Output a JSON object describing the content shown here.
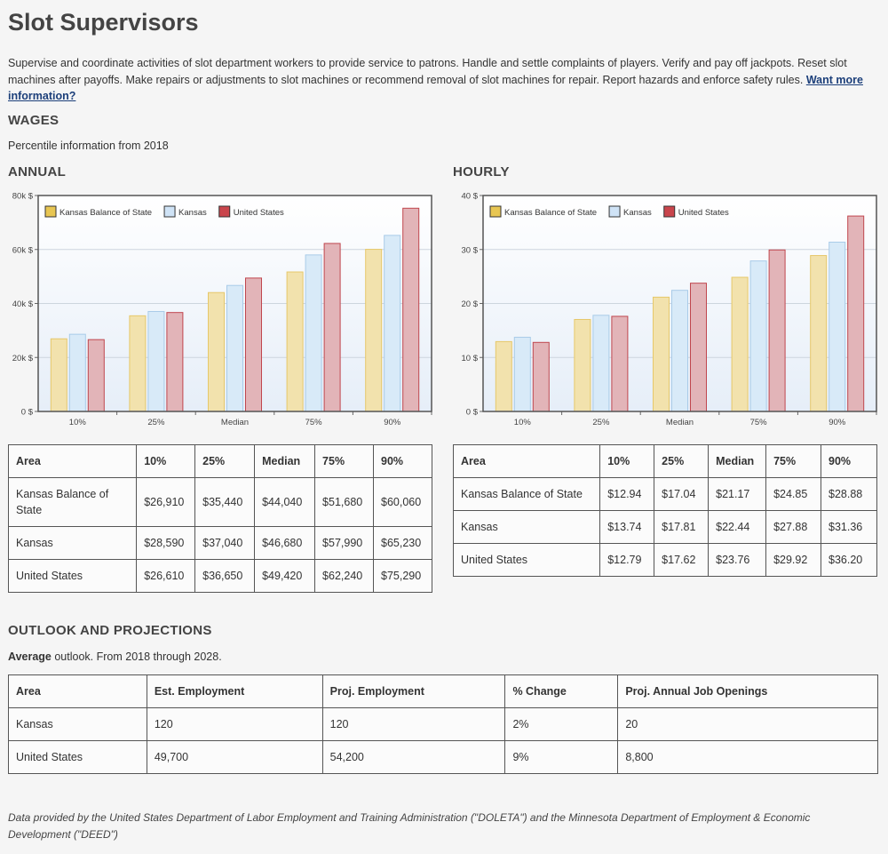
{
  "title": "Slot Supervisors",
  "description": "Supervise and coordinate activities of slot department workers to provide service to patrons. Handle and settle complaints of players. Verify and pay off jackpots. Reset slot machines after payoffs. Make repairs or adjustments to slot machines or recommend removal of slot machines for repair. Report hazards and enforce safety rules.",
  "more_info_link": "Want more information?",
  "wages": {
    "heading": "WAGES",
    "subtitle": "Percentile information from 2018",
    "annual_heading": "ANNUAL",
    "hourly_heading": "HOURLY"
  },
  "annual_table": {
    "headers": [
      "Area",
      "10%",
      "25%",
      "Median",
      "75%",
      "90%"
    ],
    "rows": [
      [
        "Kansas Balance of State",
        "$26,910",
        "$35,440",
        "$44,040",
        "$51,680",
        "$60,060"
      ],
      [
        "Kansas",
        "$28,590",
        "$37,040",
        "$46,680",
        "$57,990",
        "$65,230"
      ],
      [
        "United States",
        "$26,610",
        "$36,650",
        "$49,420",
        "$62,240",
        "$75,290"
      ]
    ]
  },
  "hourly_table": {
    "headers": [
      "Area",
      "10%",
      "25%",
      "Median",
      "75%",
      "90%"
    ],
    "rows": [
      [
        "Kansas Balance of State",
        "$12.94",
        "$17.04",
        "$21.17",
        "$24.85",
        "$28.88"
      ],
      [
        "Kansas",
        "$13.74",
        "$17.81",
        "$22.44",
        "$27.88",
        "$31.36"
      ],
      [
        "United States",
        "$12.79",
        "$17.62",
        "$23.76",
        "$29.92",
        "$36.20"
      ]
    ]
  },
  "outlook": {
    "heading": "OUTLOOK AND PROJECTIONS",
    "summary_bold": "Average",
    "summary_rest": " outlook. From 2018 through 2028.",
    "headers": [
      "Area",
      "Est. Employment",
      "Proj. Employment",
      "% Change",
      "Proj. Annual Job Openings"
    ],
    "rows": [
      [
        "Kansas",
        "120",
        "120",
        "2%",
        "20"
      ],
      [
        "United States",
        "49,700",
        "54,200",
        "9%",
        "8,800"
      ]
    ]
  },
  "footer": "Data provided by the United States Department of Labor Employment and Training Administration (\"DOLETA\") and the Minnesota Department of Employment & Economic Development (\"DEED\")",
  "colors": {
    "series_fill": [
      "#f2e2ad",
      "#d8eaf8",
      "#e2b4b8"
    ],
    "series_stroke": [
      "#e6c86a",
      "#a9cbe8",
      "#c0464e"
    ],
    "legend_swatch": [
      "#e8c652",
      "#cfe3f6",
      "#c9454c"
    ]
  },
  "chart_data": [
    {
      "type": "bar",
      "title": "ANNUAL",
      "categories": [
        "10%",
        "25%",
        "Median",
        "75%",
        "90%"
      ],
      "series": [
        {
          "name": "Kansas Balance of State",
          "values": [
            26910,
            35440,
            44040,
            51680,
            60060
          ]
        },
        {
          "name": "Kansas",
          "values": [
            28590,
            37040,
            46680,
            57990,
            65230
          ]
        },
        {
          "name": "United States",
          "values": [
            26610,
            36650,
            49420,
            62240,
            75290
          ]
        }
      ],
      "ylim": [
        0,
        80000
      ],
      "yticks": [
        0,
        20000,
        40000,
        60000,
        80000
      ],
      "ytick_labels": [
        "0 $",
        "20k $",
        "40k $",
        "60k $",
        "80k $"
      ],
      "xlabel": "",
      "ylabel": "",
      "legend": "top-left",
      "grid": true
    },
    {
      "type": "bar",
      "title": "HOURLY",
      "categories": [
        "10%",
        "25%",
        "Median",
        "75%",
        "90%"
      ],
      "series": [
        {
          "name": "Kansas Balance of State",
          "values": [
            12.94,
            17.04,
            21.17,
            24.85,
            28.88
          ]
        },
        {
          "name": "Kansas",
          "values": [
            13.74,
            17.81,
            22.44,
            27.88,
            31.36
          ]
        },
        {
          "name": "United States",
          "values": [
            12.79,
            17.62,
            23.76,
            29.92,
            36.2
          ]
        }
      ],
      "ylim": [
        0,
        40
      ],
      "yticks": [
        0,
        10,
        20,
        30,
        40
      ],
      "ytick_labels": [
        "0 $",
        "10 $",
        "20 $",
        "30 $",
        "40 $"
      ],
      "xlabel": "",
      "ylabel": "",
      "legend": "top-left",
      "grid": true
    }
  ]
}
